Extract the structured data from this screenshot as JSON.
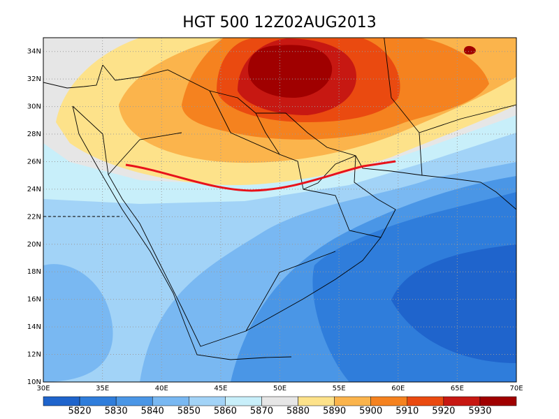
{
  "title": "HGT 500 12Z02AUG2013",
  "map": {
    "lon_range": [
      30,
      70
    ],
    "lat_range": [
      10,
      35
    ],
    "xticks": [
      {
        "value": 30,
        "label": "30E"
      },
      {
        "value": 35,
        "label": "35E"
      },
      {
        "value": 40,
        "label": "40E"
      },
      {
        "value": 45,
        "label": "45E"
      },
      {
        "value": 50,
        "label": "50E"
      },
      {
        "value": 55,
        "label": "55E"
      },
      {
        "value": 60,
        "label": "60E"
      },
      {
        "value": 65,
        "label": "65E"
      },
      {
        "value": 70,
        "label": "70E"
      }
    ],
    "yticks": [
      {
        "value": 10,
        "label": "10N"
      },
      {
        "value": 12,
        "label": "12N"
      },
      {
        "value": 14,
        "label": "14N"
      },
      {
        "value": 16,
        "label": "16N"
      },
      {
        "value": 18,
        "label": "18N"
      },
      {
        "value": 20,
        "label": "20N"
      },
      {
        "value": 22,
        "label": "22N"
      },
      {
        "value": 24,
        "label": "24N"
      },
      {
        "value": 26,
        "label": "26N"
      },
      {
        "value": 28,
        "label": "28N"
      },
      {
        "value": 30,
        "label": "30N"
      },
      {
        "value": 32,
        "label": "32N"
      },
      {
        "value": 34,
        "label": "34N"
      }
    ],
    "grid": true
  },
  "colorbar": {
    "levels": [
      5820,
      5830,
      5840,
      5850,
      5860,
      5870,
      5880,
      5890,
      5900,
      5910,
      5920,
      5930
    ],
    "colors": [
      "#1f64cc",
      "#2f7ddb",
      "#4a96e6",
      "#79b8f2",
      "#a2d3f7",
      "#c8effa",
      "#e6e6e6",
      "#fde28a",
      "#fbb44c",
      "#f5821f",
      "#ea4a10",
      "#c71812",
      "#a00000"
    ]
  }
}
